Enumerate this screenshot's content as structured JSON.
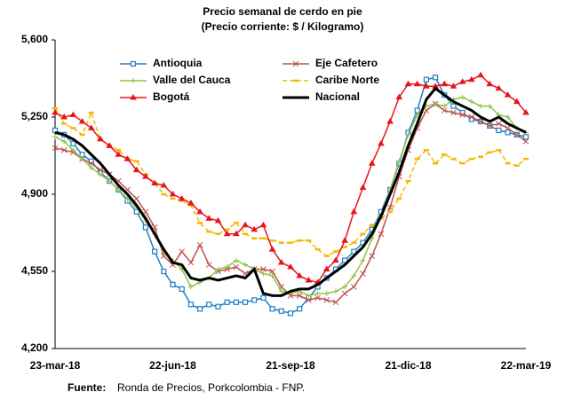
{
  "chart_data": {
    "type": "line",
    "title": "Precio semanal de cerdo en pie",
    "subtitle": "(Precio corriente: $ / Kilogramo)",
    "source_label": "Fuente:",
    "source": "Ronda de Precios, Porkcolombia  - FNP.",
    "categories": [
      "23-mar-18",
      null,
      null,
      null,
      null,
      null,
      null,
      null,
      null,
      null,
      null,
      null,
      null,
      "22-jun-18",
      null,
      null,
      null,
      null,
      null,
      null,
      null,
      null,
      null,
      null,
      null,
      null,
      "21-sep-18",
      null,
      null,
      null,
      null,
      null,
      null,
      null,
      null,
      null,
      null,
      null,
      null,
      "21-dic-18",
      null,
      null,
      null,
      null,
      null,
      null,
      null,
      null,
      null,
      null,
      null,
      null,
      "22-mar-19"
    ],
    "ylim": [
      4200,
      5600
    ],
    "yticks": [
      {
        "value": 4200,
        "label": "4,200"
      },
      {
        "value": 4550,
        "label": "4,550"
      },
      {
        "value": 4900,
        "label": "4,900"
      },
      {
        "value": 5250,
        "label": "5,250"
      },
      {
        "value": 5600,
        "label": "5,600"
      }
    ],
    "grid": false,
    "legend": "top",
    "series": [
      {
        "name": "Antioquia",
        "color": "#1f7fc4",
        "marker": "square",
        "values": [
          5190,
          5170,
          5130,
          5080,
          5050,
          5000,
          4960,
          4920,
          4870,
          4820,
          4750,
          4640,
          4550,
          4490,
          4470,
          4400,
          4380,
          4400,
          4390,
          4410,
          4410,
          4410,
          4420,
          4430,
          4380,
          4370,
          4360,
          4380,
          4430,
          4480,
          4520,
          4560,
          4600,
          4640,
          4680,
          4740,
          4820,
          4920,
          5040,
          5180,
          5280,
          5420,
          5430,
          5350,
          5300,
          5270,
          5240,
          5230,
          5210,
          5190,
          5180,
          5170,
          5160
        ]
      },
      {
        "name": "Eje Cafetero",
        "color": "#c0504d",
        "marker": "x",
        "values": [
          5110,
          5100,
          5090,
          5060,
          5040,
          5010,
          4990,
          4960,
          4920,
          4880,
          4820,
          4750,
          4620,
          4580,
          4640,
          4590,
          4670,
          4580,
          4550,
          4560,
          4570,
          4540,
          4560,
          4560,
          4550,
          4480,
          4440,
          4440,
          4420,
          4430,
          4420,
          4410,
          4450,
          4480,
          4540,
          4620,
          4720,
          4840,
          4980,
          5100,
          5200,
          5280,
          5310,
          5280,
          5270,
          5260,
          5250,
          5230,
          5210,
          5220,
          5200,
          5170,
          5140
        ]
      },
      {
        "name": "Valle del Cauca",
        "color": "#8fc34a",
        "marker": "plus",
        "values": [
          5160,
          5140,
          5100,
          5060,
          5020,
          4990,
          4960,
          4920,
          4880,
          4840,
          4780,
          4720,
          4640,
          4600,
          4560,
          4480,
          4500,
          4520,
          4560,
          4570,
          4600,
          4580,
          4560,
          4540,
          4530,
          4460,
          4450,
          4460,
          4440,
          4450,
          4450,
          4460,
          4480,
          4530,
          4600,
          4700,
          4800,
          4920,
          5050,
          5170,
          5260,
          5300,
          5310,
          5300,
          5330,
          5340,
          5320,
          5300,
          5300,
          5260,
          5250,
          5200,
          5180
        ]
      },
      {
        "name": "Caribe Norte",
        "color": "#f5b800",
        "marker": "dash",
        "values": [
          5290,
          5220,
          5200,
          5170,
          5270,
          5150,
          5120,
          5100,
          5060,
          5050,
          4990,
          4950,
          4900,
          4880,
          4870,
          4850,
          4770,
          4730,
          4720,
          4740,
          4770,
          4720,
          4700,
          4700,
          4690,
          4680,
          4680,
          4690,
          4690,
          4650,
          4620,
          4640,
          4660,
          4680,
          4720,
          4760,
          4790,
          4820,
          4880,
          4960,
          5060,
          5100,
          5040,
          5080,
          5060,
          5040,
          5060,
          5070,
          5090,
          5100,
          5040,
          5030,
          5060
        ]
      },
      {
        "name": "Bogotá",
        "color": "#e8141b",
        "marker": "triangle",
        "values": [
          5270,
          5250,
          5260,
          5230,
          5200,
          5150,
          5120,
          5080,
          5060,
          5010,
          4980,
          4950,
          4940,
          4900,
          4880,
          4860,
          4820,
          4790,
          4780,
          4720,
          4720,
          4760,
          4740,
          4760,
          4650,
          4590,
          4570,
          4530,
          4510,
          4500,
          4560,
          4600,
          4690,
          4820,
          4930,
          5040,
          5130,
          5230,
          5340,
          5400,
          5400,
          5390,
          5390,
          5400,
          5390,
          5410,
          5420,
          5440,
          5400,
          5380,
          5350,
          5320,
          5270
        ]
      },
      {
        "name": "Nacional",
        "color": "#000000",
        "marker": "none",
        "values": [
          5180,
          5170,
          5150,
          5120,
          5080,
          5040,
          4990,
          4940,
          4900,
          4850,
          4790,
          4720,
          4650,
          4590,
          4580,
          4520,
          4510,
          4520,
          4510,
          4520,
          4530,
          4520,
          4560,
          4450,
          4440,
          4440,
          4460,
          4470,
          4470,
          4490,
          4520,
          4550,
          4580,
          4620,
          4660,
          4720,
          4800,
          4900,
          5000,
          5120,
          5220,
          5330,
          5380,
          5350,
          5320,
          5300,
          5280,
          5250,
          5230,
          5250,
          5220,
          5200,
          5180
        ]
      }
    ]
  }
}
